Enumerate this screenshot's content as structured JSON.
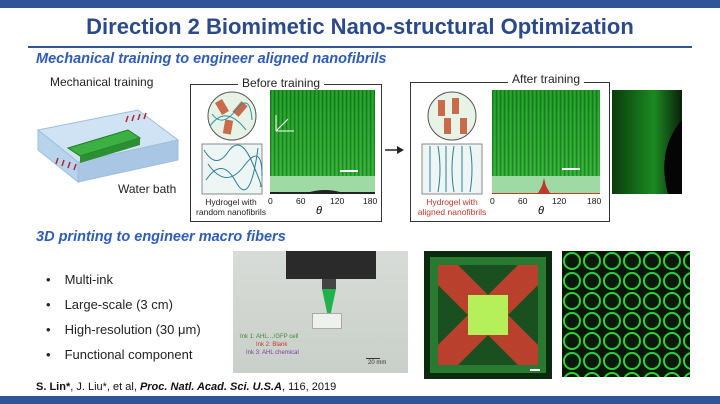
{
  "title": "Direction 2 Biomimetic Nano-structural Optimization",
  "section1": "Mechanical training to engineer aligned nanofibrils",
  "section2": "3D printing to engineer macro fibers",
  "mech_label": "Mechanical training",
  "water_label": "Water bath",
  "before_label": "Before training",
  "after_label": "After training",
  "hydrogel_random": [
    "Hydrogel with",
    "random nanofibrils"
  ],
  "hydrogel_aligned": [
    "Hydrogel with",
    "aligned nanofibrils"
  ],
  "theta": "θ",
  "ticks": [
    "0",
    "60",
    "120",
    "180"
  ],
  "bullets": [
    "Multi-ink",
    "Large-scale (3 cm)",
    "High-resolution (30 μm)",
    "Functional component"
  ],
  "ink_labels": [
    "Ink 1: AHL…/GFP cell",
    "Ink 2: Blank",
    "Ink 3: AHL chemical"
  ],
  "scale_20mm": "20 mm",
  "citation": {
    "authors": "S. Lin*",
    "rest": ", J. Liu*, et al, ",
    "journal": "Proc. Natl. Acad. Sci. U.S.A",
    "tail": ", 116, 2019"
  },
  "colors": {
    "bar": "#2f5597",
    "title": "#2b4a8a",
    "section": "#2e5cb8",
    "fluor_green": "#2aa52f",
    "red_ink": "#c0392b"
  }
}
